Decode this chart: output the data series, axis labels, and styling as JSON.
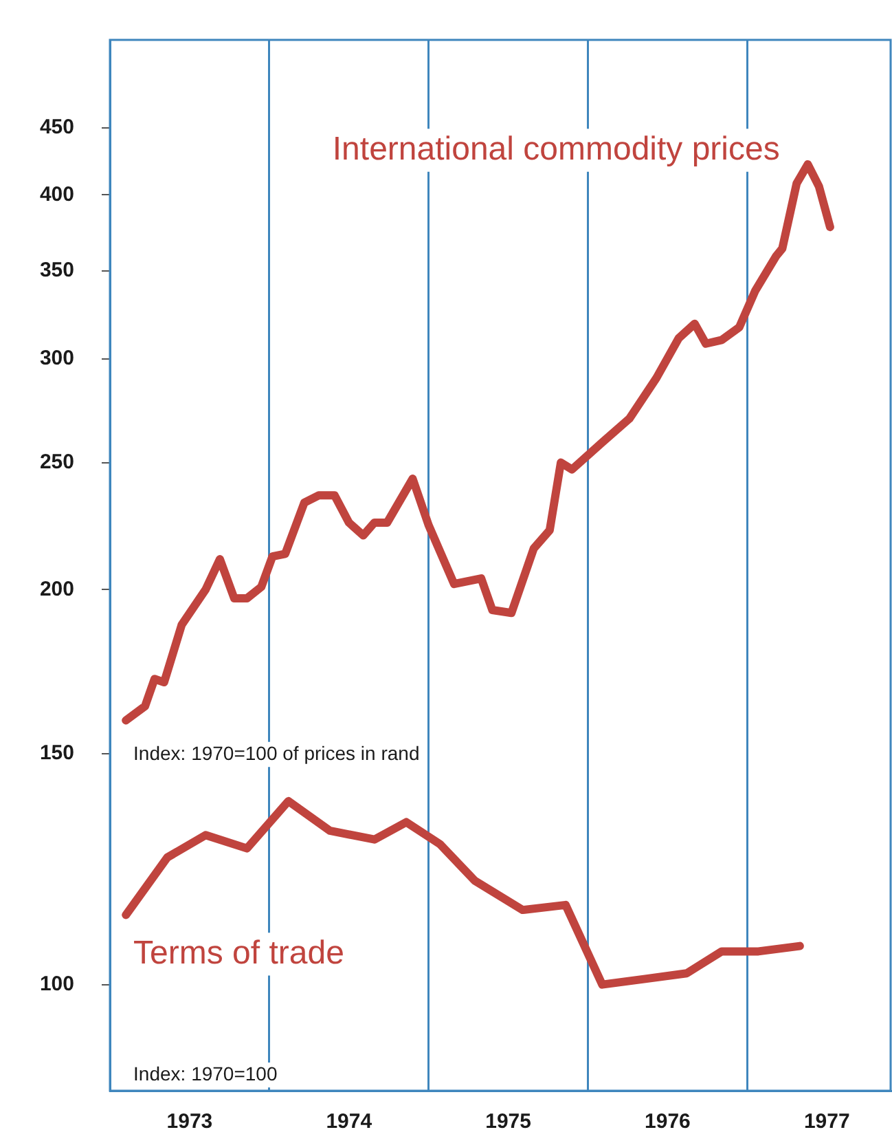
{
  "chart_data": {
    "type": "line",
    "log": "y",
    "grid": "x",
    "legend": false,
    "marker": "none",
    "line_style": "solid",
    "xlim": [
      1973,
      1977.9
    ],
    "ylim": [
      83,
      525
    ],
    "xticks": [
      {
        "value": 1973.5,
        "label": "1973"
      },
      {
        "value": 1974,
        "label": null
      },
      {
        "value": 1974.5,
        "label": "1974"
      },
      {
        "value": 1975,
        "label": null
      },
      {
        "value": 1975.5,
        "label": "1975"
      },
      {
        "value": 1976,
        "label": null
      },
      {
        "value": 1976.5,
        "label": "1976"
      },
      {
        "value": 1977,
        "label": null
      },
      {
        "value": 1977.5,
        "label": "1977"
      }
    ],
    "yticks": [
      100,
      150,
      200,
      250,
      300,
      350,
      400,
      450
    ],
    "series": [
      {
        "name": "International commodity prices",
        "color": "#c0443e",
        "x": [
          1973.1,
          1973.22,
          1973.28,
          1973.34,
          1973.45,
          1973.6,
          1973.69,
          1973.78,
          1973.86,
          1973.95,
          1974.02,
          1974.1,
          1974.22,
          1974.31,
          1974.41,
          1974.5,
          1974.59,
          1974.66,
          1974.74,
          1974.9,
          1975.0,
          1975.16,
          1975.33,
          1975.4,
          1975.52,
          1975.66,
          1975.76,
          1975.83,
          1975.9,
          1976.09,
          1976.26,
          1976.43,
          1976.57,
          1976.67,
          1976.74,
          1976.84,
          1976.95,
          1977.05,
          1977.18,
          1977.22,
          1977.31,
          1977.38,
          1977.45,
          1977.52
        ],
        "values": [
          159,
          163,
          171,
          170,
          188,
          200,
          211,
          197,
          197,
          201,
          212,
          213,
          233,
          236,
          236,
          225,
          220,
          225,
          225,
          243,
          224,
          202,
          204,
          193,
          192,
          215,
          222,
          250,
          247,
          259,
          270,
          290,
          311,
          319,
          308,
          310,
          317,
          338,
          359,
          364,
          408,
          422,
          406,
          378
        ]
      },
      {
        "name": "Terms of trade",
        "color": "#c0443e",
        "x": [
          1973.1,
          1973.36,
          1973.6,
          1973.86,
          1974.12,
          1974.38,
          1974.66,
          1974.86,
          1975.07,
          1975.29,
          1975.59,
          1975.86,
          1976.09,
          1976.36,
          1976.62,
          1976.84,
          1977.07,
          1977.33
        ],
        "values": [
          113,
          125,
          130,
          127,
          138,
          131,
          129,
          133,
          128,
          120,
          114,
          115,
          100,
          101,
          102,
          106,
          106,
          107
        ]
      }
    ],
    "annotations": [
      "Index: 1970=100 of prices in rand",
      "Index: 1970=100"
    ]
  }
}
